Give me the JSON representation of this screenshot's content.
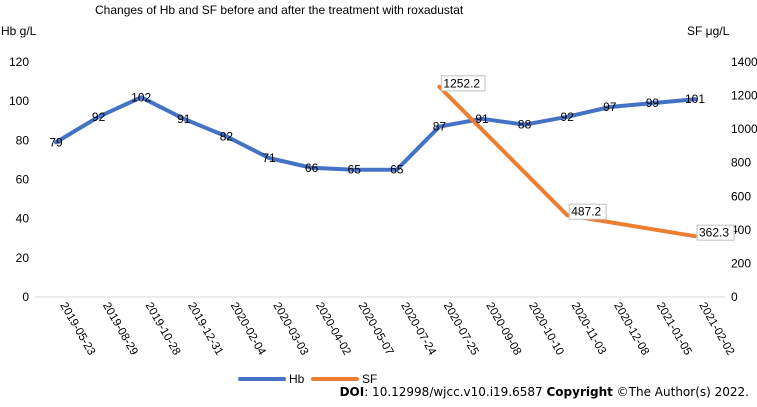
{
  "chart_data": {
    "type": "line",
    "title": "Changes of Hb and SF before and after the treatment with roxadustat",
    "y_left_label": "Hb g/L",
    "y_right_label": "SF μg/L",
    "y_left_range": [
      0,
      120
    ],
    "y_left_ticks": [
      0,
      20,
      40,
      60,
      80,
      100,
      120
    ],
    "y_right_range": [
      0,
      1400
    ],
    "y_right_ticks": [
      0,
      200,
      400,
      600,
      800,
      1000,
      1200,
      1400
    ],
    "categories": [
      "2019-05-23",
      "2019-08-29",
      "2019-10-28",
      "2019-12-31",
      "2020-02-04",
      "2020-03-03",
      "2020-04-02",
      "2020-05-07",
      "2020-07-24",
      "2020-07-25",
      "2020-09-08",
      "2020-10-10",
      "2020-11-03",
      "2020-12-08",
      "2021-01-05",
      "2021-02-02"
    ],
    "series": [
      {
        "name": "Hb",
        "axis": "left",
        "color": "#4472C4",
        "values": [
          79,
          92,
          102,
          91,
          82,
          71,
          66,
          65,
          65,
          87,
          91,
          88,
          92,
          97,
          99,
          101
        ],
        "labels": [
          "79",
          "92",
          "102",
          "91",
          "82",
          "71",
          "66",
          "65",
          "65",
          "87",
          "91",
          "88",
          "92",
          "97",
          "99",
          "101"
        ]
      },
      {
        "name": "SF",
        "axis": "right",
        "color": "#ED7D31",
        "values": [
          null,
          null,
          null,
          null,
          null,
          null,
          null,
          null,
          null,
          1252.2,
          null,
          null,
          487.2,
          null,
          null,
          362.3
        ],
        "labels": [
          null,
          null,
          null,
          null,
          null,
          null,
          null,
          null,
          null,
          "1252.2",
          null,
          null,
          "487.2",
          null,
          null,
          "362.3"
        ]
      }
    ],
    "legend": {
      "position": "bottom-left",
      "entries": [
        "Hb",
        "SF"
      ]
    },
    "grid": false
  },
  "footer": {
    "doi_label": "DOI",
    "doi_value": ": 10.12998/wjcc.v10.i19.6587 ",
    "copyright_label": "Copyright",
    "copyright_value": " ©The Author(s) 2022."
  }
}
